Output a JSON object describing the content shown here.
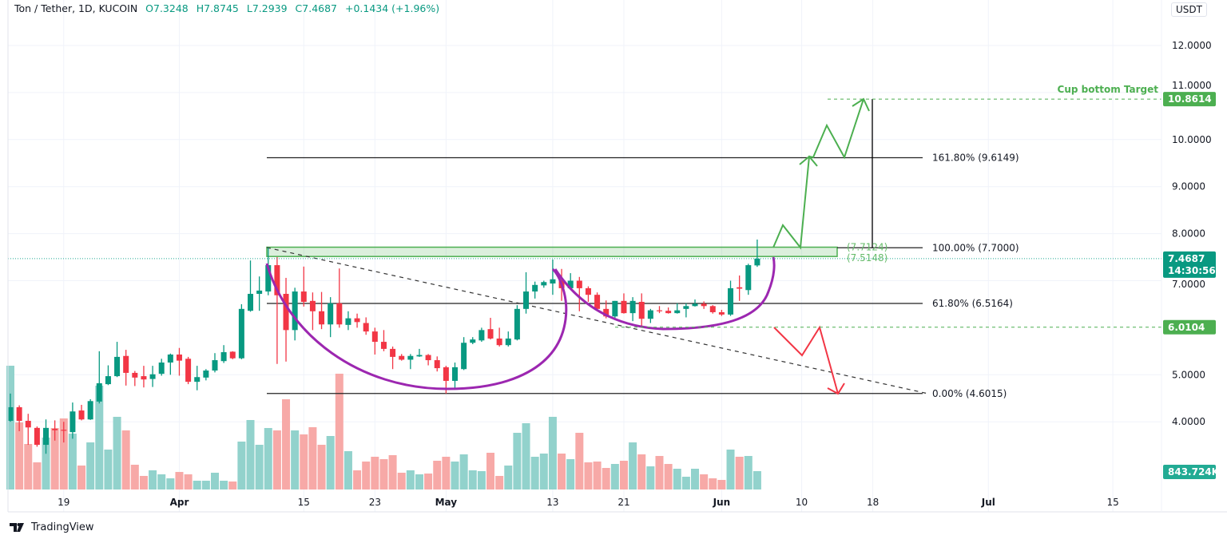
{
  "header": {
    "symbol": "Ton / Tether, 1D, KUCOIN",
    "open": "O7.3248",
    "high": "H7.8745",
    "low": "L7.2939",
    "close": "C7.4687",
    "change": "+0.1434 (+1.96%)",
    "currency": "USDT"
  },
  "branding": {
    "logo": "TradingView"
  },
  "colors": {
    "up": "#089981",
    "down": "#f23645",
    "vol_up": "#92d2cc",
    "vol_down": "#f7a9a7",
    "target": "#4caf50",
    "cup": "#9c27b0",
    "accent": "#22ab94"
  },
  "chart_data": {
    "type": "candlestick",
    "title": "",
    "y_ticks": [
      "4.0000",
      "5.0000",
      "7.0000",
      "8.0000",
      "9.0000",
      "10.0000",
      "11.0000",
      "12.0000"
    ],
    "y_tick_values": [
      4,
      5,
      7,
      8,
      9,
      10,
      11,
      12
    ],
    "ylim": [
      3.2,
      12.4
    ],
    "grid": true,
    "x_ticks": [
      {
        "label": "19",
        "date": "03-19",
        "bold": false
      },
      {
        "label": "Apr",
        "date": "04-01",
        "bold": true
      },
      {
        "label": "15",
        "date": "04-15",
        "bold": false
      },
      {
        "label": "23",
        "date": "04-23",
        "bold": false
      },
      {
        "label": "May",
        "date": "05-01",
        "bold": true
      },
      {
        "label": "13",
        "date": "05-13",
        "bold": false
      },
      {
        "label": "21",
        "date": "05-21",
        "bold": false
      },
      {
        "label": "Jun",
        "date": "06-01",
        "bold": true
      },
      {
        "label": "10",
        "date": "06-10",
        "bold": false
      },
      {
        "label": "18",
        "date": "06-18",
        "bold": false
      },
      {
        "label": "Jul",
        "date": "07-01",
        "bold": true
      },
      {
        "label": "15",
        "date": "07-15",
        "bold": false
      }
    ],
    "candle_fields": [
      "date",
      "open",
      "high",
      "low",
      "close",
      "volume_k"
    ],
    "candles": [
      [
        "03-13",
        4.02,
        4.6,
        4.0,
        4.31,
        5689
      ],
      [
        "03-14",
        4.31,
        4.35,
        3.8,
        4.02,
        3083
      ],
      [
        "03-15",
        4.02,
        4.17,
        3.51,
        3.88,
        2092
      ],
      [
        "03-16",
        3.87,
        3.9,
        3.47,
        3.51,
        1248
      ],
      [
        "03-17",
        3.51,
        4.05,
        3.32,
        3.87,
        2386
      ],
      [
        "03-18",
        3.85,
        4.03,
        3.6,
        3.82,
        2826
      ],
      [
        "03-19",
        3.83,
        4.0,
        3.56,
        3.81,
        3266
      ],
      [
        "03-20",
        3.78,
        4.41,
        3.64,
        4.22,
        2569
      ],
      [
        "03-21",
        4.24,
        4.36,
        4.03,
        4.05,
        1101
      ],
      [
        "03-22",
        4.05,
        4.48,
        4.04,
        4.44,
        2165
      ],
      [
        "03-23",
        4.43,
        5.5,
        4.39,
        4.82,
        4771
      ],
      [
        "03-24",
        4.8,
        5.2,
        4.78,
        4.97,
        1835
      ],
      [
        "03-25",
        4.97,
        5.7,
        4.95,
        5.38,
        3340
      ],
      [
        "03-26",
        5.4,
        5.53,
        4.77,
        5.04,
        2716
      ],
      [
        "03-27",
        5.04,
        5.08,
        4.76,
        4.94,
        1138
      ],
      [
        "03-28",
        4.97,
        5.19,
        4.73,
        4.9,
        624
      ],
      [
        "03-29",
        4.91,
        5.19,
        4.74,
        5.01,
        881
      ],
      [
        "03-30",
        5.02,
        5.34,
        4.98,
        5.26,
        697
      ],
      [
        "03-31",
        5.26,
        5.45,
        5.0,
        5.43,
        514
      ],
      [
        "04-01",
        5.43,
        5.57,
        4.98,
        5.3,
        807
      ],
      [
        "04-02",
        5.34,
        5.38,
        4.8,
        4.85,
        697
      ],
      [
        "04-03",
        4.85,
        5.19,
        4.67,
        4.95,
        404
      ],
      [
        "04-04",
        4.94,
        5.12,
        4.88,
        5.09,
        404
      ],
      [
        "04-05",
        5.09,
        5.46,
        5.05,
        5.31,
        771
      ],
      [
        "04-06",
        5.29,
        5.63,
        5.25,
        5.48,
        404
      ],
      [
        "04-07",
        5.49,
        5.5,
        5.33,
        5.35,
        367
      ],
      [
        "04-08",
        5.35,
        6.5,
        5.33,
        6.4,
        2202
      ],
      [
        "04-09",
        6.36,
        7.43,
        6.34,
        6.72,
        3193
      ],
      [
        "04-10",
        6.72,
        7.09,
        6.36,
        6.79,
        2055
      ],
      [
        "04-11",
        6.77,
        7.7,
        6.69,
        7.33,
        2826
      ],
      [
        "04-12",
        7.33,
        7.5,
        5.23,
        6.69,
        2716
      ],
      [
        "04-13",
        6.72,
        7.06,
        5.28,
        5.95,
        4147
      ],
      [
        "04-14",
        5.95,
        6.85,
        5.73,
        6.77,
        2716
      ],
      [
        "04-15",
        6.77,
        7.3,
        6.45,
        6.55,
        2532
      ],
      [
        "04-16",
        6.57,
        6.75,
        5.95,
        6.35,
        2863
      ],
      [
        "04-17",
        6.35,
        6.76,
        5.97,
        6.07,
        2055
      ],
      [
        "04-18",
        6.07,
        6.65,
        5.8,
        6.52,
        2459
      ],
      [
        "04-19",
        6.52,
        7.26,
        6.0,
        6.07,
        5322
      ],
      [
        "04-20",
        6.06,
        6.35,
        5.95,
        6.2,
        1762
      ],
      [
        "04-21",
        6.2,
        6.3,
        6.0,
        6.12,
        881
      ],
      [
        "04-22",
        6.1,
        6.22,
        5.85,
        5.92,
        1285
      ],
      [
        "04-23",
        5.92,
        6.0,
        5.43,
        5.7,
        1505
      ],
      [
        "04-24",
        5.7,
        5.95,
        5.5,
        5.55,
        1395
      ],
      [
        "04-25",
        5.55,
        5.6,
        5.12,
        5.38,
        1578
      ],
      [
        "04-26",
        5.4,
        5.44,
        5.3,
        5.32,
        771
      ],
      [
        "04-27",
        5.32,
        5.44,
        5.12,
        5.4,
        881
      ],
      [
        "04-28",
        5.39,
        5.55,
        5.38,
        5.42,
        697
      ],
      [
        "04-29",
        5.42,
        5.44,
        5.2,
        5.31,
        734
      ],
      [
        "04-30",
        5.31,
        5.39,
        5.07,
        5.14,
        1321
      ],
      [
        "05-01",
        5.16,
        5.19,
        4.6,
        4.87,
        1505
      ],
      [
        "05-02",
        4.87,
        5.26,
        4.7,
        5.16,
        1285
      ],
      [
        "05-03",
        5.12,
        5.8,
        5.1,
        5.68,
        1615
      ],
      [
        "05-04",
        5.68,
        5.8,
        5.65,
        5.75,
        881
      ],
      [
        "05-05",
        5.73,
        6.0,
        5.7,
        5.95,
        844
      ],
      [
        "05-06",
        5.97,
        6.21,
        5.75,
        5.77,
        1688
      ],
      [
        "05-07",
        5.77,
        6.0,
        5.6,
        5.63,
        624
      ],
      [
        "05-08",
        5.63,
        5.92,
        5.6,
        5.77,
        1101
      ],
      [
        "05-09",
        5.75,
        6.48,
        5.73,
        6.4,
        2606
      ],
      [
        "05-10",
        6.4,
        7.18,
        6.3,
        6.77,
        3046
      ],
      [
        "05-11",
        6.77,
        6.98,
        6.62,
        6.91,
        1505
      ],
      [
        "05-12",
        6.9,
        7.0,
        6.85,
        6.97,
        1652
      ],
      [
        "05-13",
        6.94,
        7.45,
        6.7,
        7.03,
        3340
      ],
      [
        "05-14",
        7.01,
        7.25,
        6.57,
        6.84,
        1652
      ],
      [
        "05-15",
        6.84,
        7.16,
        6.82,
        7.0,
        1395
      ],
      [
        "05-16",
        7.0,
        7.08,
        6.35,
        6.84,
        2606
      ],
      [
        "05-17",
        6.84,
        6.88,
        6.55,
        6.7,
        1248
      ],
      [
        "05-18",
        6.7,
        6.75,
        6.37,
        6.4,
        1285
      ],
      [
        "05-19",
        6.4,
        6.58,
        6.2,
        6.24,
        991
      ],
      [
        "05-20",
        6.24,
        6.57,
        6.18,
        6.57,
        1174
      ],
      [
        "05-21",
        6.57,
        6.73,
        6.3,
        6.31,
        1321
      ],
      [
        "05-22",
        6.31,
        6.65,
        6.14,
        6.57,
        2165
      ],
      [
        "05-23",
        6.55,
        6.73,
        6.0,
        6.19,
        1615
      ],
      [
        "05-24",
        6.19,
        6.4,
        6.1,
        6.37,
        1064
      ],
      [
        "05-25",
        6.37,
        6.46,
        6.31,
        6.35,
        1541
      ],
      [
        "05-26",
        6.36,
        6.43,
        6.3,
        6.31,
        1174
      ],
      [
        "05-27",
        6.31,
        6.52,
        6.3,
        6.37,
        954
      ],
      [
        "05-28",
        6.4,
        6.52,
        6.22,
        6.46,
        587
      ],
      [
        "05-29",
        6.46,
        6.6,
        6.45,
        6.51,
        954
      ],
      [
        "05-30",
        6.51,
        6.56,
        6.4,
        6.46,
        697
      ],
      [
        "05-31",
        6.46,
        6.48,
        6.3,
        6.33,
        514
      ],
      [
        "06-01",
        6.33,
        6.38,
        6.25,
        6.28,
        440
      ],
      [
        "06-02",
        6.28,
        7.0,
        6.25,
        6.84,
        1835
      ],
      [
        "06-03",
        6.86,
        7.11,
        6.57,
        6.83,
        1505
      ],
      [
        "06-04",
        6.8,
        7.36,
        6.7,
        7.33,
        1541
      ],
      [
        "06-05",
        7.3248,
        7.8745,
        7.2939,
        7.4687,
        843.724
      ]
    ],
    "fib_levels": [
      {
        "price": 9.6149,
        "label": "161.80% (9.6149)"
      },
      {
        "price": 7.7,
        "label": "100.00% (7.7000)"
      },
      {
        "price": 6.5164,
        "label": "61.80% (6.5164)"
      },
      {
        "price": 4.6015,
        "label": "0.00% (4.6015)"
      }
    ],
    "zone": {
      "top": 7.7124,
      "bottom": 7.5148,
      "top_label": "(7.7124)",
      "bottom_label": "(7.5148)"
    },
    "target": {
      "price": 10.8614,
      "label": "Cup bottom Target",
      "price_label": "10.8614"
    },
    "support": {
      "price": 6.0104,
      "price_label": "6.0104"
    },
    "last_price": {
      "price": 7.4687,
      "price_label": "7.4687",
      "countdown": "14:30:56"
    },
    "last_volume_label": "843.724K"
  }
}
